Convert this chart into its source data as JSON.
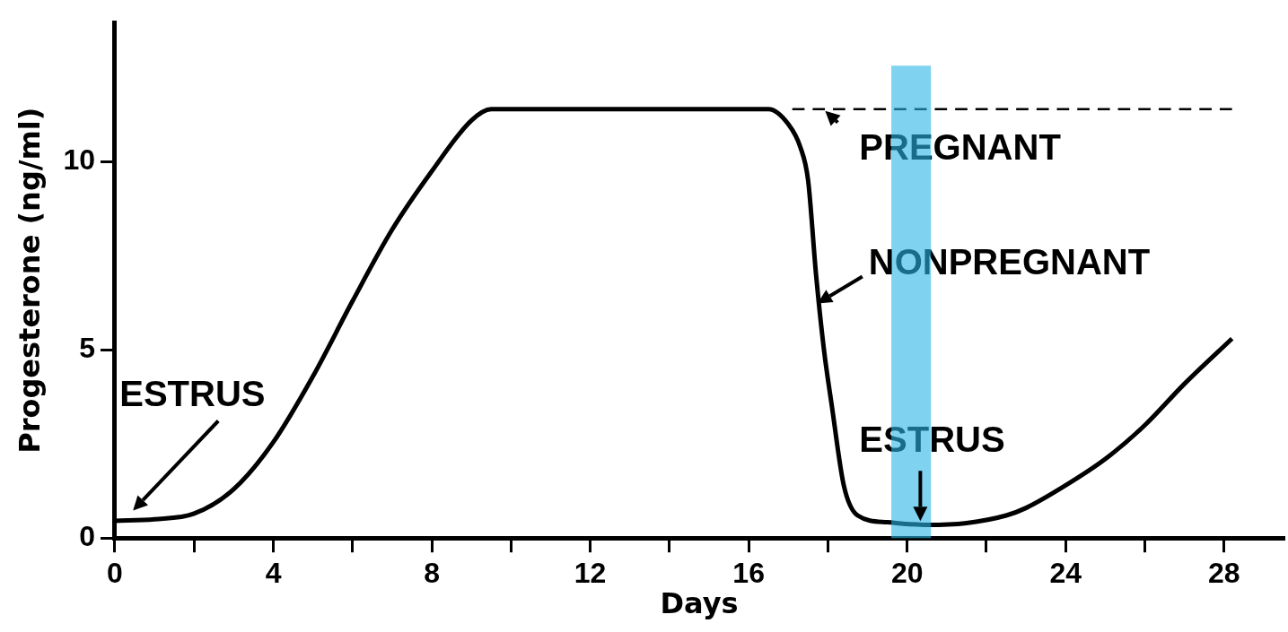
{
  "chart_data": {
    "type": "line",
    "xlabel": "Days",
    "ylabel": "Progesterone (ng/ml)",
    "xlim": [
      0,
      29.5
    ],
    "ylim": [
      0,
      13.7
    ],
    "xticks": [
      0,
      {
        "value": 2,
        "label": null
      },
      4,
      {
        "value": 6,
        "label": null
      },
      8,
      {
        "value": 10,
        "label": null
      },
      12,
      {
        "value": 14,
        "label": null
      },
      16,
      {
        "value": 18,
        "label": null
      },
      20,
      {
        "value": 22,
        "label": null
      },
      24,
      {
        "value": 26,
        "label": null
      },
      28
    ],
    "yticks": [
      0,
      5,
      10
    ],
    "grid": false,
    "legend": "top right",
    "marker": "none",
    "series": [
      {
        "name": "NONPREGNANT",
        "color": "#000000",
        "line_style": "solid",
        "x": [
          0,
          1,
          2,
          3,
          4,
          5,
          6,
          7,
          8,
          9,
          9.5,
          16.5,
          17,
          17.3,
          17.5,
          17.7,
          17.9,
          18.1,
          18.4,
          18.75,
          19.5,
          20.5,
          21.5,
          22.5,
          23,
          24,
          25,
          26,
          27,
          28.2
        ],
        "values": [
          0.46,
          0.5,
          0.65,
          1.3,
          2.55,
          4.3,
          6.3,
          8.2,
          9.75,
          11.1,
          11.4,
          11.4,
          11,
          10.4,
          9.5,
          7,
          5,
          3.5,
          1.4,
          0.6,
          0.42,
          0.35,
          0.4,
          0.6,
          0.8,
          1.4,
          2.1,
          3,
          4.1,
          5.3
        ]
      },
      {
        "name": "PREGNANT",
        "color": "#000000",
        "line_style": "dashed",
        "x": [
          17.1,
          28.2
        ],
        "values": [
          11.4,
          11.4
        ]
      }
    ],
    "bands": [
      {
        "axis": "x",
        "from": 19.6,
        "to": 20.6,
        "color": "#29b6e8"
      }
    ],
    "annotations": [
      "ESTRUS",
      "ESTRUS"
    ]
  }
}
